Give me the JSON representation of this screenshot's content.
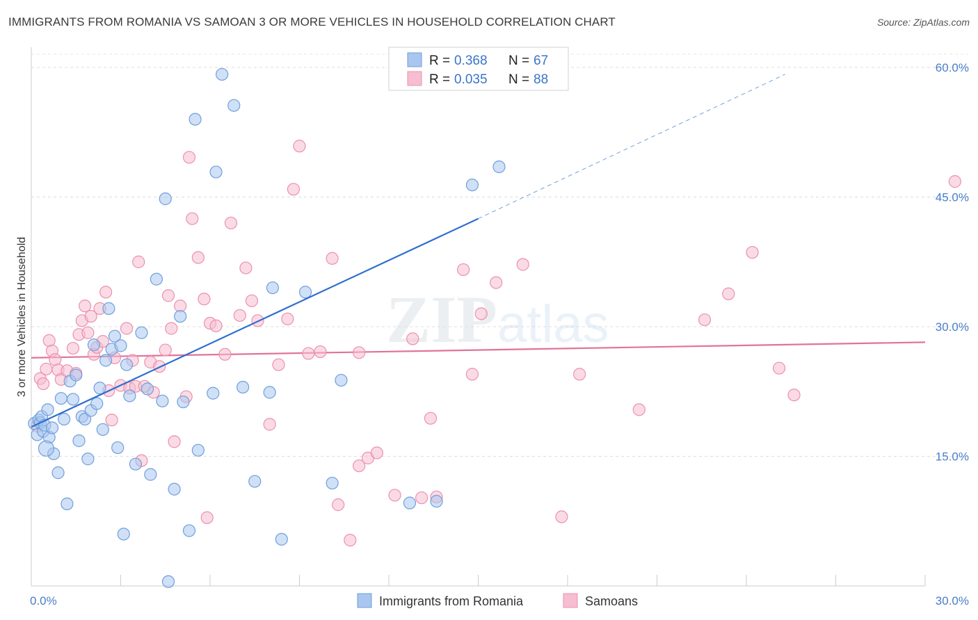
{
  "title": "IMMIGRANTS FROM ROMANIA VS SAMOAN 3 OR MORE VEHICLES IN HOUSEHOLD CORRELATION CHART",
  "source": "Source: ZipAtlas.com",
  "watermark": "ZIPatlas",
  "colors": {
    "romania_fill": "#a9c6ee",
    "romania_stroke": "#6f9fdc",
    "romania_line": "#2f6fce",
    "samoan_fill": "#f6bed0",
    "samoan_stroke": "#ec90ad",
    "samoan_line": "#e07397"
  },
  "legend": {
    "rows": [
      {
        "r_label": "R =",
        "r_value": "0.368",
        "n_label": "N =",
        "n_value": "67"
      },
      {
        "r_label": "R =",
        "r_value": "0.035",
        "n_label": "N =",
        "n_value": "88"
      }
    ]
  },
  "chart_data": {
    "type": "scatter",
    "title": "IMMIGRANTS FROM ROMANIA VS SAMOAN 3 OR MORE VEHICLES IN HOUSEHOLD CORRELATION CHART",
    "xlabel": "",
    "ylabel": "3 or more Vehicles in Household",
    "xlim": [
      0,
      30
    ],
    "ylim": [
      0,
      60
    ],
    "x_tick_labels": [
      "0.0%",
      "30.0%"
    ],
    "y_ticks": [
      15,
      30,
      45,
      60
    ],
    "y_tick_labels": [
      "15.0%",
      "30.0%",
      "45.0%",
      "60.0%"
    ],
    "grid": "horizontal dashed",
    "legend_position": "top-center",
    "series": [
      {
        "name": "Immigrants from Romania",
        "R": 0.368,
        "N": 67,
        "trend": {
          "x0": 0,
          "y0": 18.4,
          "x1": 15,
          "y1": 42.5,
          "dashed_to_x": 25.3,
          "dashed_to_y": 59.2
        },
        "points": [
          [
            0.1,
            18.8
          ],
          [
            0.2,
            17.5
          ],
          [
            0.25,
            19.2
          ],
          [
            0.3,
            18.9
          ],
          [
            0.35,
            19.6
          ],
          [
            0.4,
            17.9
          ],
          [
            0.45,
            18.6
          ],
          [
            0.55,
            20.4
          ],
          [
            0.6,
            17.2
          ],
          [
            0.7,
            18.3
          ],
          [
            0.75,
            15.3
          ],
          [
            0.9,
            13.1
          ],
          [
            1.0,
            21.7
          ],
          [
            1.1,
            19.3
          ],
          [
            1.2,
            9.5
          ],
          [
            1.3,
            23.7
          ],
          [
            1.4,
            21.6
          ],
          [
            1.5,
            24.4
          ],
          [
            1.6,
            16.8
          ],
          [
            1.7,
            19.6
          ],
          [
            1.8,
            19.3
          ],
          [
            1.9,
            14.7
          ],
          [
            2.0,
            20.3
          ],
          [
            2.1,
            27.9
          ],
          [
            2.2,
            21.1
          ],
          [
            2.3,
            22.9
          ],
          [
            2.4,
            18.1
          ],
          [
            2.5,
            26.1
          ],
          [
            2.6,
            32.1
          ],
          [
            2.7,
            27.4
          ],
          [
            2.8,
            28.9
          ],
          [
            2.9,
            16.0
          ],
          [
            3.0,
            27.8
          ],
          [
            3.2,
            25.6
          ],
          [
            3.3,
            22.0
          ],
          [
            3.5,
            14.1
          ],
          [
            3.7,
            29.3
          ],
          [
            3.9,
            22.8
          ],
          [
            4.0,
            12.9
          ],
          [
            4.2,
            35.5
          ],
          [
            4.4,
            21.4
          ],
          [
            4.6,
            0.5
          ],
          [
            4.8,
            11.2
          ],
          [
            5.1,
            21.3
          ],
          [
            5.3,
            6.4
          ],
          [
            5.6,
            15.7
          ],
          [
            4.5,
            44.8
          ],
          [
            5.0,
            31.2
          ],
          [
            6.1,
            22.3
          ],
          [
            3.1,
            6.0
          ],
          [
            6.2,
            47.9
          ],
          [
            5.5,
            54.0
          ],
          [
            6.8,
            55.6
          ],
          [
            7.1,
            23.0
          ],
          [
            6.4,
            59.2
          ],
          [
            7.5,
            12.1
          ],
          [
            8.4,
            5.4
          ],
          [
            8.1,
            34.5
          ],
          [
            10.1,
            11.9
          ],
          [
            8.0,
            22.4
          ],
          [
            10.4,
            23.8
          ],
          [
            14.8,
            46.4
          ],
          [
            15.7,
            48.5
          ],
          [
            12.7,
            9.6
          ],
          [
            9.2,
            34.0
          ],
          [
            13.6,
            9.8
          ],
          [
            0.5,
            15.9
          ]
        ]
      },
      {
        "name": "Samoans",
        "R": 0.035,
        "N": 88,
        "trend": {
          "x0": 0,
          "y0": 26.4,
          "x1": 30,
          "y1": 28.2
        },
        "points": [
          [
            0.2,
            18.5
          ],
          [
            0.3,
            24.0
          ],
          [
            0.4,
            23.4
          ],
          [
            0.5,
            25.1
          ],
          [
            0.6,
            28.4
          ],
          [
            0.7,
            27.2
          ],
          [
            0.8,
            26.2
          ],
          [
            0.9,
            25.0
          ],
          [
            1.0,
            23.9
          ],
          [
            1.2,
            24.9
          ],
          [
            1.4,
            27.5
          ],
          [
            1.5,
            24.6
          ],
          [
            1.6,
            29.1
          ],
          [
            1.7,
            30.7
          ],
          [
            1.8,
            32.4
          ],
          [
            1.9,
            29.3
          ],
          [
            2.0,
            31.2
          ],
          [
            2.1,
            26.8
          ],
          [
            2.2,
            27.6
          ],
          [
            2.3,
            32.1
          ],
          [
            2.4,
            28.3
          ],
          [
            2.5,
            34.0
          ],
          [
            2.6,
            22.6
          ],
          [
            2.7,
            19.2
          ],
          [
            2.8,
            26.4
          ],
          [
            3.0,
            23.2
          ],
          [
            3.2,
            29.8
          ],
          [
            3.3,
            22.9
          ],
          [
            3.4,
            26.1
          ],
          [
            3.5,
            23.1
          ],
          [
            3.6,
            37.5
          ],
          [
            3.7,
            14.5
          ],
          [
            3.8,
            23.1
          ],
          [
            4.0,
            25.9
          ],
          [
            4.1,
            22.4
          ],
          [
            4.3,
            25.4
          ],
          [
            4.5,
            27.3
          ],
          [
            4.6,
            33.6
          ],
          [
            4.7,
            29.8
          ],
          [
            4.8,
            16.7
          ],
          [
            5.0,
            32.4
          ],
          [
            5.2,
            21.9
          ],
          [
            5.3,
            49.6
          ],
          [
            5.4,
            42.5
          ],
          [
            5.6,
            38.0
          ],
          [
            5.8,
            33.2
          ],
          [
            6.0,
            30.4
          ],
          [
            6.2,
            30.1
          ],
          [
            5.9,
            7.9
          ],
          [
            6.5,
            26.8
          ],
          [
            6.7,
            42.0
          ],
          [
            7.0,
            31.3
          ],
          [
            7.2,
            36.8
          ],
          [
            7.4,
            33.0
          ],
          [
            7.6,
            30.7
          ],
          [
            8.0,
            18.7
          ],
          [
            8.3,
            25.6
          ],
          [
            8.6,
            30.9
          ],
          [
            8.8,
            45.9
          ],
          [
            9.0,
            50.9
          ],
          [
            9.3,
            26.9
          ],
          [
            9.7,
            27.1
          ],
          [
            10.1,
            37.9
          ],
          [
            10.3,
            9.4
          ],
          [
            10.7,
            5.3
          ],
          [
            11.0,
            13.9
          ],
          [
            11.3,
            14.8
          ],
          [
            11.6,
            15.4
          ],
          [
            11.0,
            27.0
          ],
          [
            12.2,
            10.5
          ],
          [
            12.8,
            28.6
          ],
          [
            13.1,
            10.2
          ],
          [
            13.4,
            19.4
          ],
          [
            13.6,
            10.3
          ],
          [
            14.5,
            36.6
          ],
          [
            14.8,
            24.5
          ],
          [
            15.1,
            31.5
          ],
          [
            15.6,
            35.1
          ],
          [
            16.5,
            37.2
          ],
          [
            17.8,
            8.0
          ],
          [
            18.4,
            24.5
          ],
          [
            20.4,
            20.4
          ],
          [
            22.6,
            30.8
          ],
          [
            23.4,
            33.8
          ],
          [
            24.2,
            38.6
          ],
          [
            25.1,
            25.2
          ],
          [
            25.6,
            22.1
          ],
          [
            31.0,
            46.8
          ]
        ]
      }
    ]
  },
  "bottom_legend": [
    {
      "label": "Immigrants from Romania"
    },
    {
      "label": "Samoans"
    }
  ]
}
